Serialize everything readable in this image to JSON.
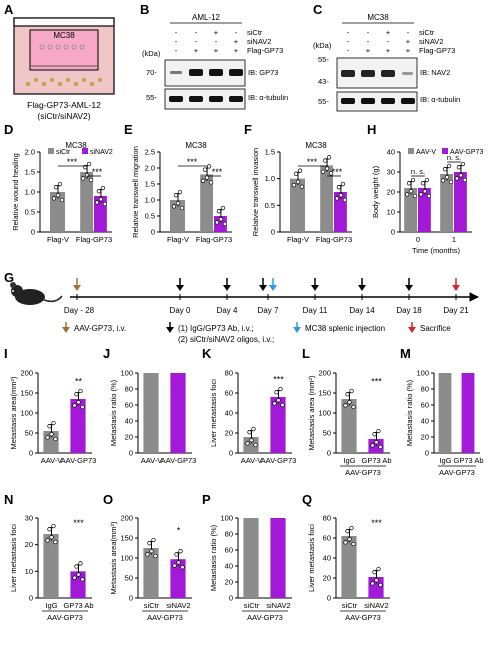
{
  "colors": {
    "gray": "#8c8c8c",
    "purple": "#a21ad8",
    "brown": "#a0703a",
    "blue": "#2f9be0",
    "red": "#d8232a",
    "black": "#000000"
  },
  "panel_letters": {
    "A": "A",
    "B": "B",
    "C": "C",
    "D": "D",
    "E": "E",
    "F": "F",
    "G": "G",
    "H": "H",
    "I": "I",
    "J": "J",
    "K": "K",
    "L": "L",
    "M": "M",
    "N": "N",
    "O": "O",
    "P": "P",
    "Q": "Q"
  },
  "panelA": {
    "label": "MC38",
    "caption": "Flag-GP73-AML-12",
    "caption2": "(siCtr/siNAV2)"
  },
  "panelB": {
    "title": "AML-12",
    "rows": [
      {
        "name": "siCtr",
        "signs": [
          "-",
          "-",
          "+",
          "-"
        ]
      },
      {
        "name": "siNAV2",
        "signs": [
          "-",
          "-",
          "-",
          "+"
        ]
      },
      {
        "name": "Flag-GP73",
        "signs": [
          "-",
          "+",
          "+",
          "+"
        ]
      }
    ],
    "kda": "(kDa)",
    "mw": [
      "70-",
      "55-"
    ],
    "ib": [
      "IB: GP73",
      "IB: α-tubulin"
    ]
  },
  "panelC": {
    "title": "MC38",
    "rows": [
      {
        "name": "siCtr",
        "signs": [
          "-",
          "-",
          "+",
          "-"
        ]
      },
      {
        "name": "siNAV2",
        "signs": [
          "-",
          "-",
          "-",
          "+"
        ]
      },
      {
        "name": "Flag-GP73",
        "signs": [
          "-",
          "+",
          "+",
          "+"
        ]
      }
    ],
    "kda": "(kDa)",
    "mw": [
      "55-",
      "43-",
      "55-"
    ],
    "ib": [
      "IB: NAV2",
      "IB: α-tubulin"
    ]
  },
  "chart_data": [
    {
      "panel": "D",
      "type": "bar",
      "title": "MC38",
      "ylabel": "Relative wound healing",
      "ylim": [
        0,
        2.0
      ],
      "yticks": [
        "0",
        "0.5",
        "1.0",
        "1.5",
        "2.0"
      ],
      "categories": [
        "Flag-V",
        "Flag-GP73"
      ],
      "legend": [
        "siCtr",
        "siNAV2"
      ],
      "series": [
        {
          "name": "siCtr",
          "values": [
            1.0,
            1.5
          ]
        },
        {
          "name": "siNAV2",
          "values": [
            null,
            0.9
          ]
        }
      ],
      "sig": [
        "***",
        "***"
      ]
    },
    {
      "panel": "E",
      "type": "bar",
      "title": "MC38",
      "ylabel": "Relatvie transwell migration",
      "ylim": [
        0,
        2.5
      ],
      "yticks": [
        "0",
        "0.5",
        "1.0",
        "1.5",
        "2.0",
        "2.5"
      ],
      "categories": [
        "Flag-V",
        "Flag-GP73"
      ],
      "series": [
        {
          "name": "siCtr",
          "values": [
            1.0,
            1.8
          ]
        },
        {
          "name": "siNAV2",
          "values": [
            null,
            0.5
          ]
        }
      ],
      "sig": [
        "***",
        "***"
      ]
    },
    {
      "panel": "F",
      "type": "bar",
      "title": "MC38",
      "ylabel": "Relatvie transwell invasion",
      "ylim": [
        0,
        1.5
      ],
      "yticks": [
        "0",
        "0.5",
        "1.0",
        "1.5"
      ],
      "categories": [
        "Flag-V",
        "Flag-GP73"
      ],
      "series": [
        {
          "name": "siCtr",
          "values": [
            1.0,
            1.25
          ]
        },
        {
          "name": "siNAV2",
          "values": [
            null,
            0.75
          ]
        }
      ],
      "sig": [
        "***",
        "***"
      ]
    },
    {
      "panel": "H",
      "type": "bar",
      "ylabel": "Body weight (g)",
      "xlabel": "Time (months)",
      "ylim": [
        0,
        40
      ],
      "yticks": [
        "0",
        "10",
        "20",
        "30",
        "40"
      ],
      "categories": [
        "0",
        "1"
      ],
      "legend": [
        "AAV-V",
        "AAV-GP73"
      ],
      "series": [
        {
          "name": "AAV-V",
          "values": [
            22,
            29
          ]
        },
        {
          "name": "AAV-GP73",
          "values": [
            22,
            30
          ]
        }
      ],
      "sig": [
        "n. s.",
        "n. s."
      ]
    },
    {
      "panel": "I",
      "type": "bar",
      "ylabel": "Metastasis area(mm²)",
      "ylim": [
        0,
        200
      ],
      "yticks": [
        "0",
        "50",
        "100",
        "150",
        "200"
      ],
      "categories": [
        "AAV-V",
        "AAV-GP73"
      ],
      "values": [
        55,
        135
      ],
      "sig": [
        "**"
      ]
    },
    {
      "panel": "J",
      "type": "bar",
      "ylabel": "Metastasis ratio (%)",
      "ylim": [
        0,
        100
      ],
      "yticks": [
        "0",
        "20",
        "40",
        "60",
        "80",
        "100"
      ],
      "categories": [
        "AAV-V",
        "AAV-GP73"
      ],
      "values": [
        100,
        100
      ]
    },
    {
      "panel": "K",
      "type": "bar",
      "ylabel": "Liver metastasis foci",
      "ylim": [
        0,
        80
      ],
      "yticks": [
        "0",
        "20",
        "40",
        "60",
        "80"
      ],
      "categories": [
        "AAV-V",
        "AAV-GP73"
      ],
      "values": [
        16,
        56
      ],
      "sig": [
        "***"
      ]
    },
    {
      "panel": "L",
      "type": "bar",
      "ylabel": "Metastasis area (mm²)",
      "ylim": [
        0,
        200
      ],
      "yticks": [
        "0",
        "50",
        "100",
        "150",
        "200"
      ],
      "categories": [
        "IgG",
        "GP73 Ab"
      ],
      "group": "AAV-GP73",
      "values": [
        135,
        35
      ],
      "sig": [
        "***"
      ]
    },
    {
      "panel": "M",
      "type": "bar",
      "ylabel": "Metastasis ratio (%)",
      "ylim": [
        0,
        100
      ],
      "yticks": [
        "0",
        "20",
        "40",
        "60",
        "80",
        "100"
      ],
      "categories": [
        "IgG",
        "GP73 Ab"
      ],
      "group": "AAV-GP73",
      "values": [
        100,
        100
      ]
    },
    {
      "panel": "N",
      "type": "bar",
      "ylabel": "Liver metastasis foci",
      "ylim": [
        0,
        30
      ],
      "yticks": [
        "0",
        "10",
        "20",
        "30"
      ],
      "categories": [
        "IgG",
        "GP73 Ab"
      ],
      "group": "AAV-GP73",
      "values": [
        24,
        10
      ],
      "sig": [
        "***"
      ]
    },
    {
      "panel": "O",
      "type": "bar",
      "ylabel": "Metastasis area(mm²)",
      "ylim": [
        0,
        200
      ],
      "yticks": [
        "0",
        "50",
        "100",
        "150",
        "200"
      ],
      "categories": [
        "siCtr",
        "siNAV2"
      ],
      "group": "AAV-GP73",
      "values": [
        125,
        97
      ],
      "sig": [
        "*"
      ]
    },
    {
      "panel": "P",
      "type": "bar",
      "ylabel": "Metastasis ratio (%)",
      "ylim": [
        0,
        100
      ],
      "yticks": [
        "0",
        "20",
        "40",
        "60",
        "80",
        "100"
      ],
      "categories": [
        "siCtr",
        "siNAV2"
      ],
      "group": "AAV-GP73",
      "values": [
        100,
        100
      ]
    },
    {
      "panel": "Q",
      "type": "bar",
      "ylabel": "Liver metastasis foci",
      "ylim": [
        0,
        80
      ],
      "yticks": [
        "0",
        "20",
        "40",
        "60",
        "80"
      ],
      "categories": [
        "siCtr",
        "siNAV2"
      ],
      "group": "AAV-GP73",
      "values": [
        62,
        21
      ],
      "sig": [
        "***"
      ]
    }
  ],
  "panelG": {
    "days": [
      "Day - 28",
      "Day 0",
      "Day 4",
      "Day 7",
      "Day 11",
      "Day 14",
      "Day 18",
      "Day 21"
    ],
    "legend": [
      "AAV-GP73, i.v.",
      "(1) IgG/GP73 Ab, i.v.;",
      "(2) siCtr/siNAV2 oligos, i.v.;",
      "MC38 splenic injection",
      "Sacrifice"
    ]
  }
}
